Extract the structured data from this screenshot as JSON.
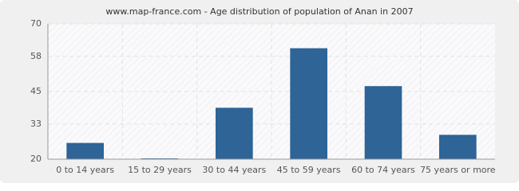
{
  "chart_data": {
    "type": "bar",
    "title": "www.map-france.com - Age distribution of population of Anan in 2007",
    "categories": [
      "0 to 14 years",
      "15 to 29 years",
      "30 to 44 years",
      "45 to 59 years",
      "60 to 74 years",
      "75 years or more"
    ],
    "values": [
      26,
      20,
      39,
      61,
      47,
      29
    ],
    "color": "#2e6496",
    "ylim": [
      20,
      70
    ],
    "yticks": [
      20,
      33,
      45,
      58,
      70
    ],
    "grid": true
  }
}
